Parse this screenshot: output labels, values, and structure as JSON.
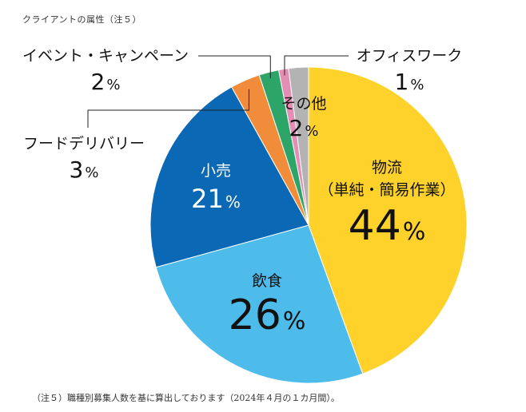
{
  "header": {
    "title": "クライアントの属性（注５）"
  },
  "footnote": {
    "text": "（注５）職種別募集人数を基に算出しております（2024年４月の１カ月間）。"
  },
  "chart_data": {
    "type": "pie",
    "title": "クライアントの属性（注５）",
    "percent_unit": "%",
    "slices": [
      {
        "label": "物流",
        "sublabel": "（単純・簡易作業）",
        "value": 44,
        "color": "#FFD22B"
      },
      {
        "label": "飲食",
        "sublabel": "",
        "value": 26,
        "color": "#4EBCEB"
      },
      {
        "label": "小売",
        "sublabel": "",
        "value": 21,
        "color": "#0B68B5"
      },
      {
        "label": "フードデリバリー",
        "sublabel": "",
        "value": 3,
        "color": "#F08C3A"
      },
      {
        "label": "イベント・キャンペーン",
        "sublabel": "",
        "value": 2,
        "color": "#2EA568"
      },
      {
        "label": "オフィスワーク",
        "sublabel": "",
        "value": 1,
        "color": "#E58EB5"
      },
      {
        "label": "その他",
        "sublabel": "",
        "value": 2,
        "color": "#B3B3B3"
      }
    ],
    "start": "12 o'clock",
    "direction": "clockwise"
  }
}
